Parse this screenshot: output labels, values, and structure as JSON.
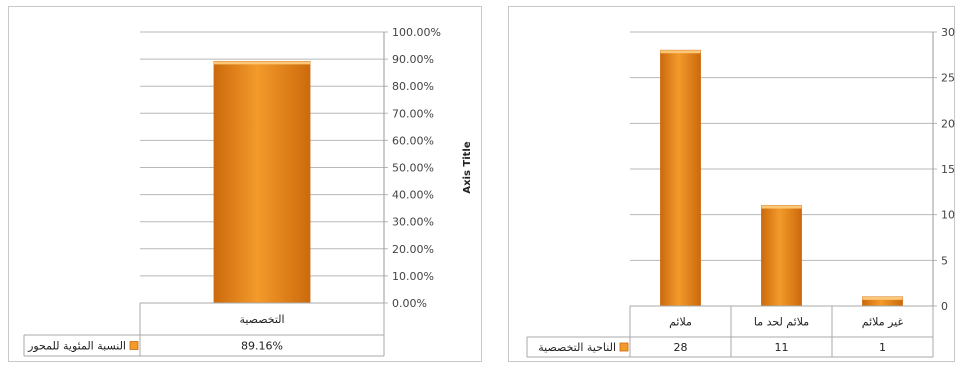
{
  "chart_data": [
    {
      "type": "bar",
      "categories": [
        "التخصصية"
      ],
      "series": [
        {
          "name": "النسبة المئوية للمحور",
          "values": [
            89.16
          ],
          "value_labels": [
            "89.16%"
          ]
        }
      ],
      "ylim": [
        0,
        100
      ],
      "y_ticks": [
        "0.00%",
        "10.00%",
        "20.00%",
        "30.00%",
        "40.00%",
        "50.00%",
        "60.00%",
        "70.00%",
        "80.00%",
        "90.00%",
        "100.00%"
      ],
      "ylabel": "Axis Title",
      "y_axis_side": "right",
      "grid": true,
      "legend": "data-table",
      "colors": {
        "bar": "#f39a2b",
        "bar_dark": "#cc6a0c",
        "bar_top": "#fcc878"
      }
    },
    {
      "type": "bar",
      "categories": [
        "ملائم",
        "ملائم لحد ما",
        "غير ملائم"
      ],
      "series": [
        {
          "name": "الناحية التخصصية",
          "values": [
            28,
            11,
            1
          ],
          "value_labels": [
            "28",
            "11",
            "1"
          ]
        }
      ],
      "ylim": [
        0,
        30
      ],
      "y_ticks": [
        "0",
        "5",
        "10",
        "15",
        "20",
        "25",
        "30"
      ],
      "ylabel": "",
      "y_axis_side": "right",
      "grid": true,
      "legend": "data-table",
      "colors": {
        "bar": "#f39a2b",
        "bar_dark": "#cc6a0c",
        "bar_top": "#fcc878"
      }
    }
  ]
}
